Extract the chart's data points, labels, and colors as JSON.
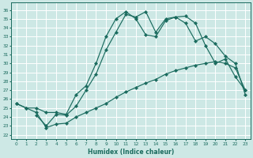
{
  "xlabel": "Humidex (Indice chaleur)",
  "bg_color": "#cde8e5",
  "grid_color": "#ffffff",
  "line_color": "#1a6b5e",
  "xlim": [
    -0.5,
    23.5
  ],
  "ylim": [
    21.5,
    36.8
  ],
  "xticks": [
    0,
    1,
    2,
    3,
    4,
    5,
    6,
    7,
    8,
    9,
    10,
    11,
    12,
    13,
    14,
    15,
    16,
    17,
    18,
    19,
    20,
    21,
    22,
    23
  ],
  "yticks": [
    22,
    23,
    24,
    25,
    26,
    27,
    28,
    29,
    30,
    31,
    32,
    33,
    34,
    35,
    36
  ],
  "line1_x": [
    0,
    1,
    2,
    3,
    4,
    5,
    6,
    7,
    8,
    9,
    10,
    11,
    12,
    13,
    14,
    15,
    16,
    17,
    18,
    19,
    20,
    21,
    22,
    23
  ],
  "line1_y": [
    25.5,
    25.0,
    25.0,
    24.5,
    24.5,
    24.3,
    26.5,
    27.5,
    30.0,
    33.0,
    35.0,
    35.8,
    35.0,
    33.2,
    33.0,
    34.8,
    35.2,
    34.5,
    32.5,
    33.0,
    32.2,
    30.8,
    30.0,
    26.5
  ],
  "line2_x": [
    2,
    3,
    4,
    5,
    6,
    7,
    8,
    9,
    10,
    11,
    12,
    13,
    14,
    15,
    16,
    17,
    18,
    19,
    20,
    21,
    22,
    23
  ],
  "line2_y": [
    24.2,
    23.0,
    24.3,
    24.2,
    25.2,
    27.0,
    28.8,
    31.5,
    33.5,
    35.5,
    35.2,
    35.8,
    33.5,
    35.0,
    35.2,
    35.3,
    34.5,
    32.0,
    30.0,
    30.5,
    28.5,
    27.0
  ],
  "line3_x": [
    0,
    1,
    2,
    3,
    4,
    5,
    6,
    7,
    8,
    9,
    10,
    11,
    12,
    13,
    14,
    15,
    16,
    17,
    18,
    19,
    20,
    21,
    22,
    23
  ],
  "line3_y": [
    25.5,
    25.0,
    24.5,
    22.8,
    23.2,
    23.3,
    24.0,
    24.5,
    25.0,
    25.5,
    26.2,
    26.8,
    27.3,
    27.8,
    28.2,
    28.8,
    29.2,
    29.5,
    29.8,
    30.0,
    30.2,
    30.0,
    29.5,
    27.0
  ]
}
